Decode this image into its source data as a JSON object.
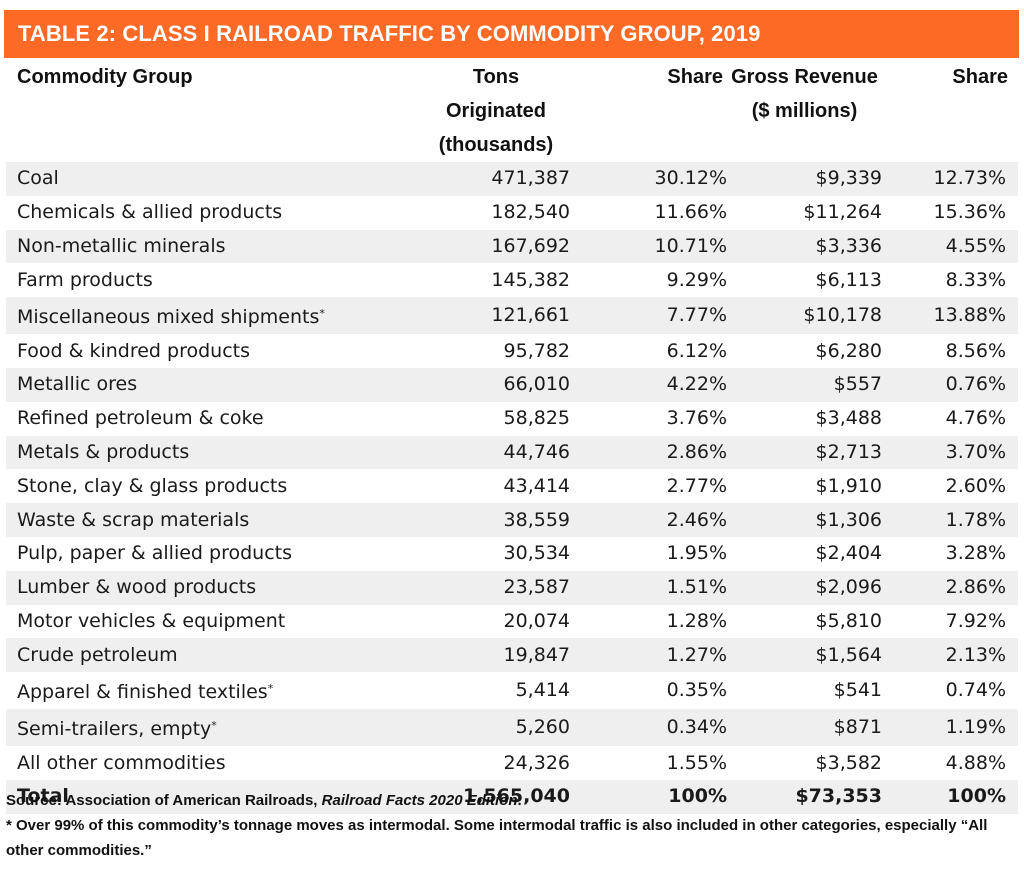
{
  "title": "TABLE 2: CLASS I RAILROAD TRAFFIC BY COMMODITY GROUP, 2019",
  "accent_color": "#fc6a26",
  "headers": [
    {
      "line1": "Commodity Group",
      "line2": ""
    },
    {
      "line1": "Tons Originated",
      "line2": "(thousands)"
    },
    {
      "line1": "Share",
      "line2": ""
    },
    {
      "line1": "Gross Revenue",
      "line2": "($ millions)"
    },
    {
      "line1": "Share",
      "line2": ""
    }
  ],
  "rows": [
    {
      "commodity": "Coal",
      "footnote": "",
      "tons": "471,387",
      "tons_share": "30.12%",
      "revenue": "$9,339",
      "revenue_share": "12.73%"
    },
    {
      "commodity": "Chemicals & allied products",
      "footnote": "",
      "tons": "182,540",
      "tons_share": "11.66%",
      "revenue": "$11,264",
      "revenue_share": "15.36%"
    },
    {
      "commodity": "Non-metallic minerals",
      "footnote": "",
      "tons": "167,692",
      "tons_share": "10.71%",
      "revenue": "$3,336",
      "revenue_share": "4.55%"
    },
    {
      "commodity": "Farm products",
      "footnote": "",
      "tons": "145,382",
      "tons_share": "9.29%",
      "revenue": "$6,113",
      "revenue_share": "8.33%"
    },
    {
      "commodity": "Miscellaneous mixed shipments",
      "footnote": "*",
      "tons": "121,661",
      "tons_share": "7.77%",
      "revenue": "$10,178",
      "revenue_share": "13.88%"
    },
    {
      "commodity": "Food & kindred products",
      "footnote": "",
      "tons": "95,782",
      "tons_share": "6.12%",
      "revenue": "$6,280",
      "revenue_share": "8.56%"
    },
    {
      "commodity": "Metallic ores",
      "footnote": "",
      "tons": "66,010",
      "tons_share": "4.22%",
      "revenue": "$557",
      "revenue_share": "0.76%"
    },
    {
      "commodity": "Refined petroleum & coke",
      "footnote": "",
      "tons": "58,825",
      "tons_share": "3.76%",
      "revenue": "$3,488",
      "revenue_share": "4.76%"
    },
    {
      "commodity": "Metals & products",
      "footnote": "",
      "tons": "44,746",
      "tons_share": "2.86%",
      "revenue": "$2,713",
      "revenue_share": "3.70%"
    },
    {
      "commodity": "Stone, clay & glass products",
      "footnote": "",
      "tons": "43,414",
      "tons_share": "2.77%",
      "revenue": "$1,910",
      "revenue_share": "2.60%"
    },
    {
      "commodity": "Waste & scrap materials",
      "footnote": "",
      "tons": "38,559",
      "tons_share": "2.46%",
      "revenue": "$1,306",
      "revenue_share": "1.78%"
    },
    {
      "commodity": "Pulp, paper & allied products",
      "footnote": "",
      "tons": "30,534",
      "tons_share": "1.95%",
      "revenue": "$2,404",
      "revenue_share": "3.28%"
    },
    {
      "commodity": "Lumber & wood products",
      "footnote": "",
      "tons": "23,587",
      "tons_share": "1.51%",
      "revenue": "$2,096",
      "revenue_share": "2.86%"
    },
    {
      "commodity": "Motor vehicles & equipment",
      "footnote": "",
      "tons": "20,074",
      "tons_share": "1.28%",
      "revenue": "$5,810",
      "revenue_share": "7.92%"
    },
    {
      "commodity": "Crude petroleum",
      "footnote": "",
      "tons": "19,847",
      "tons_share": "1.27%",
      "revenue": "$1,564",
      "revenue_share": "2.13%"
    },
    {
      "commodity": "Apparel & finished textiles",
      "footnote": "*",
      "tons": "5,414",
      "tons_share": "0.35%",
      "revenue": "$541",
      "revenue_share": "0.74%"
    },
    {
      "commodity": "Semi-trailers, empty",
      "footnote": "*",
      "tons": "5,260",
      "tons_share": "0.34%",
      "revenue": "$871",
      "revenue_share": "1.19%"
    },
    {
      "commodity": "All other commodities",
      "footnote": "",
      "tons": "24,326",
      "tons_share": "1.55%",
      "revenue": "$3,582",
      "revenue_share": "4.88%"
    }
  ],
  "total": {
    "commodity": "Total",
    "tons": "1,565,040",
    "tons_share": "100%",
    "revenue": "$73,353",
    "revenue_share": "100%"
  },
  "notes": {
    "source_prefix": "Source: Association of American Railroads, ",
    "source_title": "Railroad Facts 2020 Edition",
    "source_suffix": ".",
    "footnote": "* Over 99% of this commodity’s tonnage moves as intermodal. Some intermodal traffic is also included in other categories, especially “All other commodities.”"
  }
}
